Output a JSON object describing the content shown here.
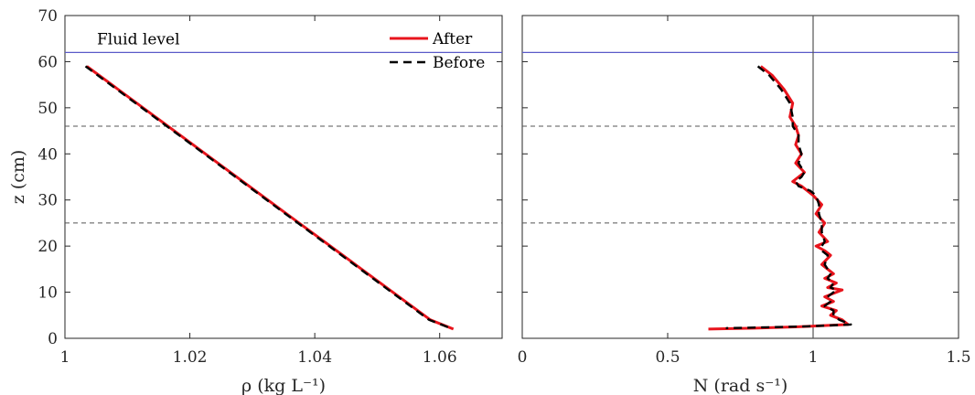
{
  "chart_data": [
    {
      "type": "line",
      "xlabel": "ρ (kg L⁻¹)",
      "ylabel": "z (cm)",
      "xlim": [
        1,
        1.07
      ],
      "ylim": [
        0,
        70
      ],
      "xticks": [
        1,
        1.02,
        1.04,
        1.06
      ],
      "xtick_labels": [
        "1",
        "1.02",
        "1.04",
        "1.06"
      ],
      "yticks": [
        0,
        10,
        20,
        30,
        40,
        50,
        60,
        70
      ],
      "ytick_labels": [
        "0",
        "10",
        "20",
        "30",
        "40",
        "50",
        "60",
        "70"
      ],
      "grid": false,
      "legend_position": "top-right",
      "annotation": {
        "text": "Fluid level",
        "x": 1.013,
        "y": 62
      },
      "reference_lines": [
        {
          "orientation": "horizontal",
          "value": 62,
          "style": "solid",
          "color": "#5a5ac8"
        },
        {
          "orientation": "horizontal",
          "value": 46,
          "style": "dashed",
          "color": "#555555"
        },
        {
          "orientation": "horizontal",
          "value": 25,
          "style": "dashed",
          "color": "#555555"
        }
      ],
      "series": [
        {
          "name": "After",
          "color": "#e8141c",
          "style": "solid",
          "x": [
            1.0035,
            1.0145,
            1.0255,
            1.0365,
            1.0475,
            1.0585,
            1.0622
          ],
          "y": [
            59,
            48,
            37,
            26,
            15,
            4,
            2
          ]
        },
        {
          "name": "Before",
          "color": "#000000",
          "style": "dashed",
          "x": [
            1.0033,
            1.0143,
            1.0253,
            1.0363,
            1.0473,
            1.0583,
            1.0621
          ],
          "y": [
            59,
            48,
            37,
            26,
            15,
            4,
            2
          ]
        }
      ]
    },
    {
      "type": "line",
      "xlabel": "N (rad s⁻¹)",
      "ylabel": "",
      "xlim": [
        0,
        1.5
      ],
      "ylim": [
        0,
        70
      ],
      "xticks": [
        0,
        0.5,
        1,
        1.5
      ],
      "xtick_labels": [
        "0",
        "0.5",
        "1",
        "1.5"
      ],
      "yticks": [
        0,
        10,
        20,
        30,
        40,
        50,
        60,
        70
      ],
      "grid": false,
      "reference_lines": [
        {
          "orientation": "horizontal",
          "value": 62,
          "style": "solid",
          "color": "#5a5ac8"
        },
        {
          "orientation": "horizontal",
          "value": 46,
          "style": "dashed",
          "color": "#555555"
        },
        {
          "orientation": "horizontal",
          "value": 25,
          "style": "dashed",
          "color": "#555555"
        },
        {
          "orientation": "vertical",
          "value": 1,
          "style": "solid",
          "color": "#555555"
        }
      ],
      "series": [
        {
          "name": "After",
          "color": "#e8141c",
          "style": "solid",
          "x": [
            0.82,
            0.86,
            0.9,
            0.93,
            0.92,
            0.94,
            0.95,
            0.94,
            0.96,
            0.94,
            0.97,
            0.95,
            0.93,
            0.96,
            0.98,
            1.0,
            1.03,
            1.01,
            1.04,
            1.02,
            1.05,
            1.01,
            1.04,
            1.06,
            1.03,
            1.07,
            1.04,
            1.08,
            1.05,
            1.1,
            1.04,
            1.07,
            1.03,
            1.08,
            1.06,
            1.1,
            1.12,
            0.95,
            0.8,
            0.64
          ],
          "y": [
            59,
            57,
            54,
            51,
            48,
            46,
            44,
            42,
            40,
            38,
            36,
            35,
            34,
            33,
            32,
            31,
            29,
            27,
            25,
            23,
            21,
            20,
            19,
            18,
            16,
            14,
            13,
            12,
            11,
            10.5,
            9,
            8,
            7,
            6,
            5,
            4,
            3,
            2.5,
            2.2,
            2
          ]
        },
        {
          "name": "Before",
          "color": "#000000",
          "style": "dashed",
          "x": [
            0.81,
            0.85,
            0.89,
            0.92,
            0.93,
            0.93,
            0.95,
            0.95,
            0.96,
            0.95,
            0.97,
            0.96,
            0.94,
            0.95,
            0.99,
            1.01,
            1.02,
            1.02,
            1.03,
            1.03,
            1.04,
            1.03,
            1.03,
            1.05,
            1.04,
            1.06,
            1.05,
            1.07,
            1.06,
            1.08,
            1.05,
            1.06,
            1.04,
            1.07,
            1.07,
            1.09,
            1.13,
            0.98,
            0.85,
            0.7
          ],
          "y": [
            59,
            57,
            54,
            51,
            48,
            46,
            44,
            42,
            40,
            38,
            36,
            35,
            34,
            33,
            32,
            31,
            29,
            27,
            25,
            23,
            21,
            20,
            19,
            18,
            16,
            14,
            13,
            12,
            11,
            10.5,
            9,
            8,
            7,
            6,
            5,
            4,
            3,
            2.6,
            2.4,
            2.2
          ]
        }
      ]
    }
  ]
}
